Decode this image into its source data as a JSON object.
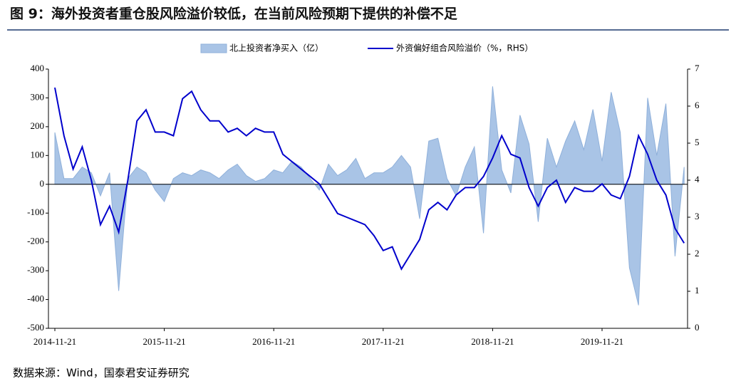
{
  "chart_data": {
    "type": "area_line",
    "title": "图 9：海外投资者重仓股风险溢价较低，在当前风险预期下提供的补偿不足",
    "source": "数据来源：Wind，国泰君安证券研究",
    "categories": [
      "2014-11-21",
      null,
      null,
      null,
      null,
      null,
      null,
      null,
      null,
      null,
      null,
      null,
      "2015-11-21",
      null,
      null,
      null,
      null,
      null,
      null,
      null,
      null,
      null,
      null,
      null,
      "2016-11-21",
      null,
      null,
      null,
      null,
      null,
      null,
      null,
      null,
      null,
      null,
      null,
      "2017-11-21",
      null,
      null,
      null,
      null,
      null,
      null,
      null,
      null,
      null,
      null,
      null,
      "2018-11-21",
      null,
      null,
      null,
      null,
      null,
      null,
      null,
      null,
      null,
      null,
      null,
      "2019-11-21",
      null,
      null,
      null,
      null,
      null,
      null,
      null,
      null,
      null
    ],
    "series": [
      {
        "name": "北上投资者净买入（亿）",
        "color": "#a9c4e6",
        "values": [
          180,
          20,
          20,
          60,
          40,
          -40,
          40,
          -370,
          20,
          60,
          40,
          -20,
          -60,
          20,
          40,
          30,
          50,
          40,
          20,
          50,
          70,
          30,
          10,
          20,
          50,
          40,
          80,
          60,
          20,
          -20,
          70,
          30,
          50,
          90,
          20,
          40,
          40,
          60,
          100,
          60,
          -120,
          150,
          160,
          20,
          -40,
          60,
          130,
          -170,
          340,
          50,
          -30,
          240,
          140,
          -130,
          160,
          60,
          150,
          220,
          120,
          260,
          80,
          320,
          180,
          -290,
          -420,
          300,
          100,
          280,
          -250,
          60
        ]
      },
      {
        "name": "外资偏好组合风险溢价（%，RHS）",
        "color": "#0000cc",
        "axis": "y2",
        "values": [
          6.5,
          5.2,
          4.3,
          4.9,
          4.0,
          2.8,
          3.3,
          2.6,
          4.0,
          5.6,
          5.9,
          5.3,
          5.3,
          5.2,
          6.2,
          6.4,
          5.9,
          5.6,
          5.6,
          5.3,
          5.4,
          5.2,
          5.4,
          5.3,
          5.3,
          4.7,
          4.5,
          4.3,
          4.1,
          3.9,
          3.5,
          3.1,
          3.0,
          2.9,
          2.8,
          2.5,
          2.1,
          2.2,
          1.6,
          2.0,
          2.4,
          3.2,
          3.4,
          3.2,
          3.6,
          3.8,
          3.8,
          4.1,
          4.6,
          5.2,
          4.7,
          4.6,
          3.8,
          3.3,
          3.8,
          4.0,
          3.4,
          3.8,
          3.7,
          3.7,
          3.9,
          3.6,
          3.5,
          4.1,
          5.2,
          4.7,
          4.0,
          3.6,
          2.7,
          2.3
        ]
      }
    ],
    "ylim": [
      -500,
      400
    ],
    "yticks": [
      -500,
      -400,
      -300,
      -200,
      -100,
      0,
      100,
      200,
      300,
      400
    ],
    "y2lim": [
      0,
      7
    ],
    "y2ticks": [
      0,
      1,
      2,
      3,
      4,
      5,
      6,
      7
    ]
  }
}
